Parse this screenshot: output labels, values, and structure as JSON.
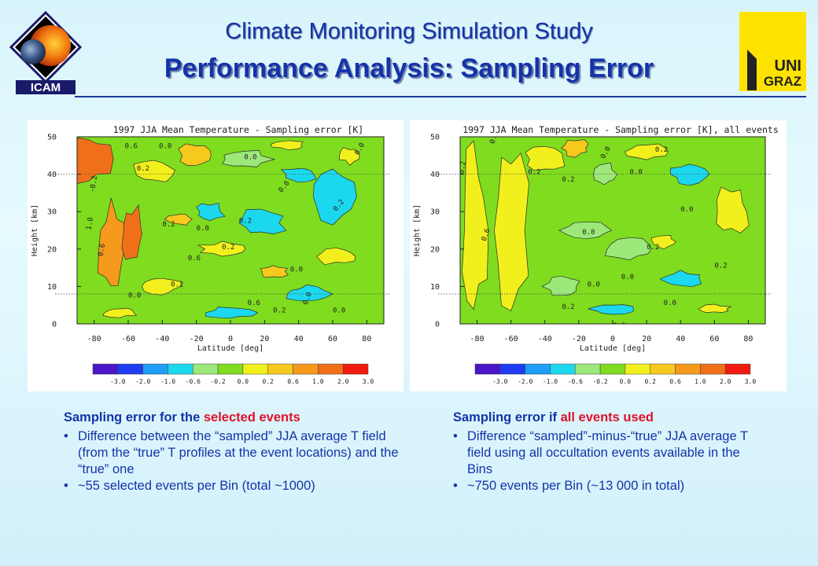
{
  "header": {
    "title": "Climate Monitoring Simulation Study",
    "subtitle": "Performance Analysis: Sampling Error",
    "left_logo_text": "ICAM",
    "right_logo_text_1": "UNI",
    "right_logo_text_2": "GRAZ",
    "accent_color": "#1533a8"
  },
  "chart_data": [
    {
      "type": "heatmap",
      "title": "1997 JJA Mean Temperature - Sampling error [K]",
      "xlabel": "Latitude [deg]",
      "ylabel": "Height [km]",
      "xlim": [
        -90,
        90
      ],
      "ylim": [
        0,
        50
      ],
      "x_ticks": [
        "-80",
        "-60",
        "-40",
        "-20",
        "0",
        "20",
        "40",
        "60",
        "80"
      ],
      "y_ticks": [
        "0",
        "10",
        "20",
        "30",
        "40",
        "50"
      ],
      "reference_lines_km": [
        8,
        40
      ],
      "colorbar_ticks": [
        "-3.0",
        "-2.0",
        "-1.0",
        "-0.6",
        "-0.2",
        "0.0",
        "0.2",
        "0.6",
        "1.0",
        "2.0",
        "3.0"
      ],
      "colorbar_colors": [
        "#4a16c8",
        "#1f3cf2",
        "#1e9ef5",
        "#1cd8ee",
        "#9ce87a",
        "#7fdc1f",
        "#f2f01c",
        "#f7c91c",
        "#f59a1c",
        "#f0701a",
        "#f01a10"
      ],
      "contour_labels": [
        "0.6",
        "0.2",
        "0.0",
        "-0.2",
        "1.0",
        "0.6",
        "0.2",
        "0.0",
        "0.2",
        "0.0",
        "0.2",
        "0.0",
        "0.6",
        "0.0",
        "0.2",
        "0.0",
        "0.6",
        "0.2",
        "0.0",
        "0.0",
        "0.2",
        "0.0"
      ]
    },
    {
      "type": "heatmap",
      "title": "1997 JJA Mean Temperature - Sampling error [K], all events",
      "xlabel": "Latitude [deg]",
      "ylabel": "Height [km]",
      "xlim": [
        -90,
        90
      ],
      "ylim": [
        0,
        50
      ],
      "x_ticks": [
        "-80",
        "-60",
        "-40",
        "-20",
        "0",
        "20",
        "40",
        "60",
        "80"
      ],
      "y_ticks": [
        "0",
        "10",
        "20",
        "30",
        "40",
        "50"
      ],
      "reference_lines_km": [
        8,
        40
      ],
      "colorbar_ticks": [
        "-3.0",
        "-2.0",
        "-1.0",
        "-0.6",
        "-0.2",
        "0.0",
        "0.2",
        "0.6",
        "1.0",
        "2.0",
        "3.0"
      ],
      "colorbar_colors": [
        "#4a16c8",
        "#1f3cf2",
        "#1e9ef5",
        "#1cd8ee",
        "#9ce87a",
        "#7fdc1f",
        "#f2f01c",
        "#f7c91c",
        "#f59a1c",
        "#f0701a",
        "#f01a10"
      ],
      "contour_labels": [
        "0.2",
        "0.0",
        "0.2",
        "0.6",
        "0.2",
        "0.0",
        "0.0",
        "0.2",
        "0.0",
        "0.0",
        "0.2",
        "0.0",
        "0.0",
        "0.2",
        "0.6",
        "0.0",
        "0.2"
      ]
    }
  ],
  "captions": [
    {
      "head_prefix": "Sampling error for the ",
      "head_highlight": "selected events",
      "bullets": [
        "Difference between the “sampled” JJA average T field (from the “true” T profiles at the event locations) and the “true” one",
        "~55 selected events per Bin (total ~1000)"
      ]
    },
    {
      "head_prefix": "Sampling error if ",
      "head_highlight": "all events used",
      "bullets": [
        "Difference “sampled”-minus-“true” JJA average T field using all occultation events available in the Bins",
        "~750 events per Bin (~13 000 in total)"
      ]
    }
  ]
}
